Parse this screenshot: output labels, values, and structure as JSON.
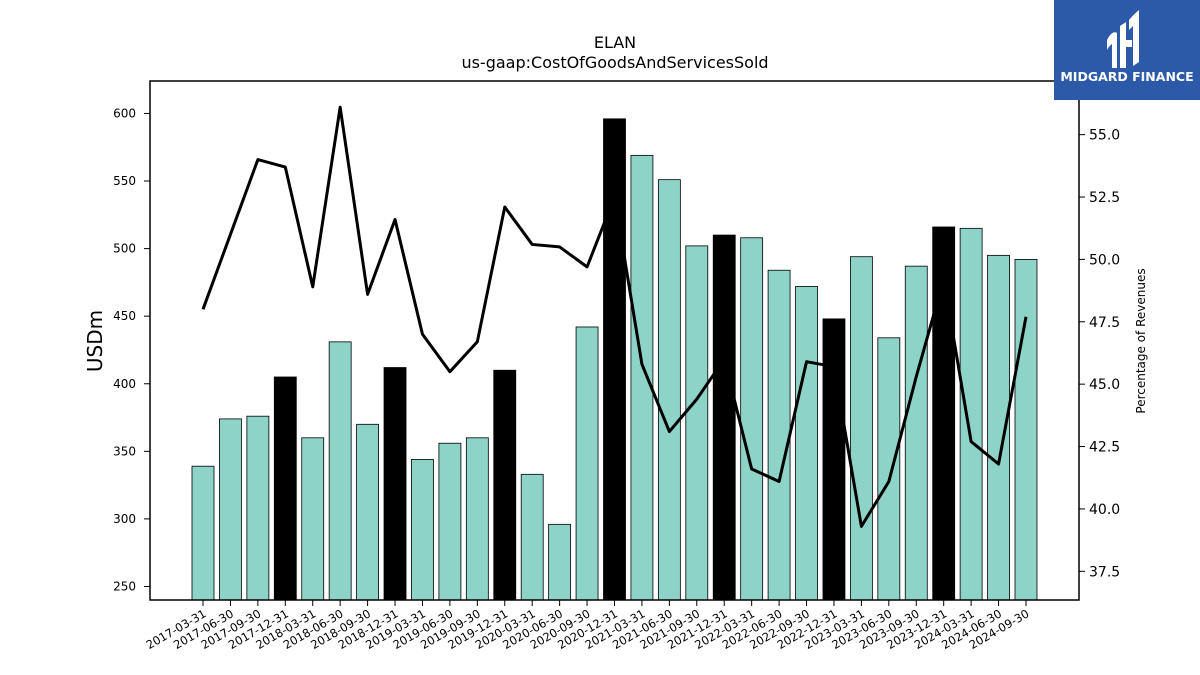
{
  "chart_data": {
    "type": "bar",
    "title": "ELAN",
    "subtitle": "us-gaap:CostOfGoodsAndServicesSold",
    "ylabel": "USDm",
    "ylabel_right": "Percentage of Revenues",
    "categories": [
      "2017-03-31",
      "2017-06-30",
      "2017-09-30",
      "2017-12-31",
      "2018-03-31",
      "2018-06-30",
      "2018-09-30",
      "2018-12-31",
      "2019-03-31",
      "2019-06-30",
      "2019-09-30",
      "2019-12-31",
      "2020-03-31",
      "2020-06-30",
      "2020-09-30",
      "2020-12-31",
      "2021-03-31",
      "2021-06-30",
      "2021-09-30",
      "2021-12-31",
      "2022-03-31",
      "2022-06-30",
      "2022-09-30",
      "2022-12-31",
      "2023-03-31",
      "2023-06-30",
      "2023-09-30",
      "2023-12-31",
      "2024-03-31",
      "2024-06-30",
      "2024-09-30"
    ],
    "series": [
      {
        "type": "bar",
        "values": [
          339,
          374,
          376,
          405,
          360,
          431,
          370,
          412,
          344,
          356,
          360,
          410,
          333,
          296,
          442,
          596,
          569,
          551,
          502,
          510,
          508,
          484,
          472,
          448,
          494,
          434,
          487,
          516,
          515,
          495,
          492
        ],
        "highlight": [
          false,
          false,
          false,
          true,
          false,
          false,
          false,
          true,
          false,
          false,
          false,
          true,
          false,
          false,
          false,
          true,
          false,
          false,
          false,
          true,
          false,
          false,
          false,
          true,
          false,
          false,
          false,
          true,
          false,
          false,
          false
        ],
        "color": "#8dd3c7",
        "highlight_color": "#000000"
      },
      {
        "type": "line",
        "axis": "right",
        "values": [
          48.0,
          51.0,
          54.0,
          53.7,
          48.9,
          56.1,
          48.6,
          51.6,
          47.0,
          45.5,
          46.7,
          52.1,
          50.6,
          50.5,
          49.7,
          52.5,
          45.8,
          43.1,
          44.4,
          46.0,
          41.6,
          41.1,
          45.9,
          45.7,
          39.3,
          41.1,
          45.3,
          49.2,
          42.7,
          41.8,
          47.7
        ],
        "color": "#000000"
      }
    ],
    "ylim": [
      240,
      624
    ],
    "yticks": [
      250,
      300,
      350,
      400,
      450,
      500,
      550,
      600
    ],
    "ylim_right": [
      36.35,
      57.15
    ],
    "yticks_right": [
      "37.5",
      "40.0",
      "42.5",
      "45.0",
      "47.5",
      "50.0",
      "52.5",
      "55.0"
    ],
    "grid": false
  },
  "logo": {
    "text": "MIDGARD FINANCE",
    "color": "#2c5aa8"
  }
}
